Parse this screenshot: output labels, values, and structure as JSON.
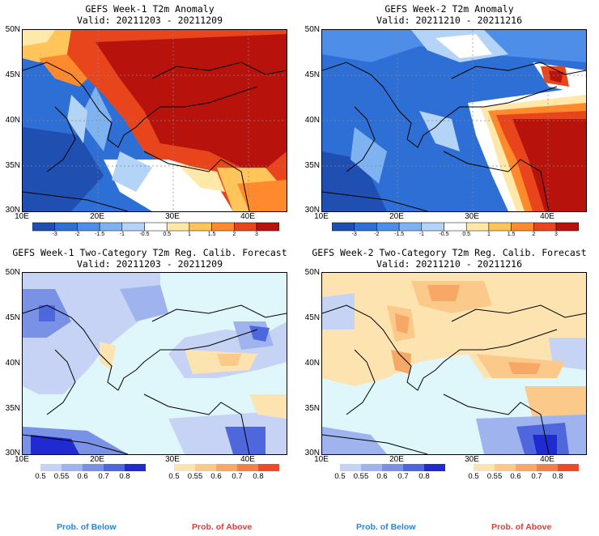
{
  "panels": [
    {
      "id": "p1",
      "title": "GEFS Week-1 T2m Anomaly",
      "valid": "Valid: 20211203 - 20211209"
    },
    {
      "id": "p2",
      "title": "GEFS Week-2 T2m Anomaly",
      "valid": "Valid: 20211210 - 20211216"
    },
    {
      "id": "p3",
      "title": "GEFS Week-1 Two-Category T2m Reg. Calib. Forecast",
      "valid": "Valid: 20211203 - 20211209"
    },
    {
      "id": "p4",
      "title": "GEFS Week-2 Two-Category T2m Reg. Calib. Forecast",
      "valid": "Valid: 20211210 - 20211216"
    }
  ],
  "lat_labels": [
    "50N",
    "45N",
    "40N",
    "35N",
    "30N"
  ],
  "lon_labels": [
    "10E",
    "20E",
    "30E",
    "40E"
  ],
  "anomaly_colorbar": {
    "ticks": [
      "-3",
      "-2",
      "-1.5",
      "-1",
      "-0.5",
      "0.5",
      "1",
      "1.5",
      "2",
      "3"
    ],
    "colors": [
      "#1f4fb0",
      "#2e6fd6",
      "#4f8ee8",
      "#7fb2f0",
      "#b3d3f7",
      "#ffffff",
      "#ffe8a8",
      "#ffc45a",
      "#ff8a2e",
      "#e8451c",
      "#b8120d"
    ]
  },
  "prob_below": {
    "label": "Prob. of Below",
    "ticks": [
      "0.5",
      "0.55",
      "0.6",
      "0.7",
      "0.8"
    ],
    "colors": [
      "#c6d3f5",
      "#9fb4ef",
      "#7a92e6",
      "#4f67dc",
      "#1f2bd0"
    ],
    "label_color": "#1e88e5"
  },
  "prob_above": {
    "label": "Prob. of Above",
    "ticks": [
      "0.5",
      "0.55",
      "0.6",
      "0.7",
      "0.8"
    ],
    "colors": [
      "#fde3b0",
      "#fbc98a",
      "#f7a867",
      "#f38048",
      "#ee4a28"
    ],
    "label_color": "#e53935"
  },
  "colors": {
    "sea": "#dff6fb",
    "coast": "#000000"
  }
}
